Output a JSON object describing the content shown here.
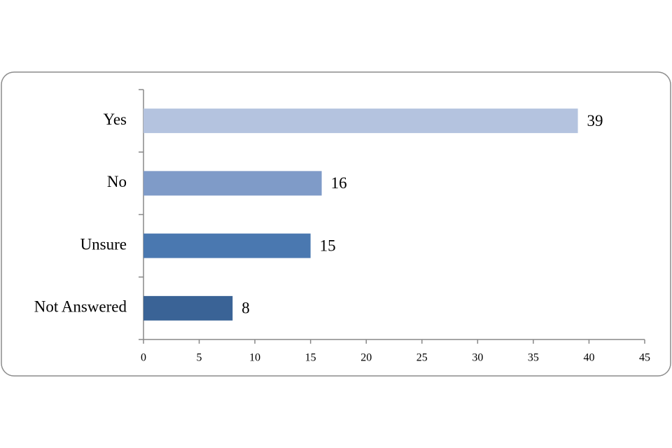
{
  "chart_data": {
    "type": "bar",
    "orientation": "horizontal",
    "categories": [
      "Yes",
      "No",
      "Unsure",
      "Not Answered"
    ],
    "values": [
      39,
      16,
      15,
      8
    ],
    "colors": [
      "#b4c3df",
      "#7f9bc8",
      "#4a78b0",
      "#3a6396"
    ],
    "xlim": [
      0,
      45
    ],
    "xticks": [
      0,
      5,
      10,
      15,
      20,
      25,
      30,
      35,
      40,
      45
    ]
  }
}
